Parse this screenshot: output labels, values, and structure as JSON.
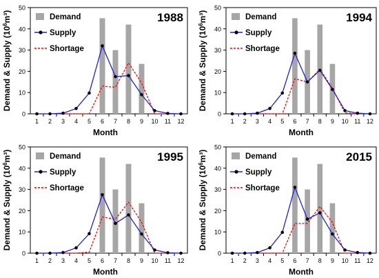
{
  "figure": {
    "ylabel_text": "Demand & Supply (10",
    "ylabel_exp": "6",
    "ylabel_unit": "m³)",
    "xlabel": "Month"
  },
  "colors": {
    "demand": "#a6a6a6",
    "supply": "#1f1fd6",
    "supply_marker": "#000000",
    "shortage": "#ff0000"
  },
  "chart_data": [
    {
      "type": "bar+line",
      "title": "1988",
      "xlabel": "Month",
      "ylabel": "Demand & Supply (10⁶m³)",
      "ylim": [
        0,
        50
      ],
      "yticks": [
        0,
        10,
        20,
        30,
        40,
        50
      ],
      "categories": [
        "1",
        "2",
        "3",
        "4",
        "5",
        "6",
        "7",
        "8",
        "9",
        "10",
        "11",
        "12"
      ],
      "series": [
        {
          "name": "Demand",
          "kind": "bar",
          "values": [
            0,
            0,
            0,
            0,
            0,
            45,
            30,
            42,
            23.5,
            0,
            0,
            0
          ]
        },
        {
          "name": "Supply",
          "kind": "line-marker",
          "values": [
            0,
            0,
            0.3,
            2.5,
            9.8,
            32,
            17.5,
            18,
            9,
            1.5,
            0.2,
            0
          ]
        },
        {
          "name": "Shortage",
          "kind": "dashed-line",
          "values": [
            0,
            0,
            0,
            0,
            0,
            13,
            12.5,
            24,
            14.5,
            0,
            0,
            0
          ]
        }
      ],
      "legend": "top-left",
      "grid": false
    },
    {
      "type": "bar+line",
      "title": "1994",
      "xlabel": "Month",
      "ylabel": "Demand & Supply (10⁶m³)",
      "ylim": [
        0,
        50
      ],
      "yticks": [
        0,
        10,
        20,
        30,
        40,
        50
      ],
      "categories": [
        "1",
        "2",
        "3",
        "4",
        "5",
        "6",
        "7",
        "8",
        "9",
        "10",
        "11",
        "12"
      ],
      "series": [
        {
          "name": "Demand",
          "kind": "bar",
          "values": [
            0,
            0,
            0,
            0,
            0,
            45,
            30,
            42,
            23.5,
            0,
            0,
            0
          ]
        },
        {
          "name": "Supply",
          "kind": "line-marker",
          "values": [
            0,
            0,
            0.3,
            2.5,
            9.8,
            28.5,
            15,
            20.5,
            11.5,
            1.5,
            0.3,
            0
          ]
        },
        {
          "name": "Shortage",
          "kind": "dashed-line",
          "values": [
            0,
            0,
            0,
            0,
            0,
            16.5,
            15,
            21,
            12,
            0.5,
            0,
            0
          ]
        }
      ],
      "legend": "top-left",
      "grid": false
    },
    {
      "type": "bar+line",
      "title": "1995",
      "xlabel": "Month",
      "ylabel": "Demand & Supply (10⁶m³)",
      "ylim": [
        0,
        50
      ],
      "yticks": [
        0,
        10,
        20,
        30,
        40,
        50
      ],
      "categories": [
        "1",
        "2",
        "3",
        "4",
        "5",
        "6",
        "7",
        "8",
        "9",
        "10",
        "11",
        "12"
      ],
      "series": [
        {
          "name": "Demand",
          "kind": "bar",
          "values": [
            0,
            0,
            0,
            0,
            0,
            45,
            30,
            42,
            23.5,
            0,
            0,
            0
          ]
        },
        {
          "name": "Supply",
          "kind": "line-marker",
          "values": [
            0,
            0,
            0.3,
            2.5,
            9.2,
            27.5,
            14,
            18,
            9,
            1.5,
            0.2,
            0
          ]
        },
        {
          "name": "Shortage",
          "kind": "dashed-line",
          "values": [
            0,
            0,
            0,
            0,
            0.5,
            17,
            16,
            24,
            14.5,
            0,
            0,
            0
          ]
        }
      ],
      "legend": "top-left",
      "grid": false
    },
    {
      "type": "bar+line",
      "title": "2015",
      "xlabel": "Month",
      "ylabel": "Demand & Supply (10⁶m³)",
      "ylim": [
        0,
        50
      ],
      "yticks": [
        0,
        10,
        20,
        30,
        40,
        50
      ],
      "categories": [
        "1",
        "2",
        "3",
        "4",
        "5",
        "6",
        "7",
        "8",
        "9",
        "10",
        "11",
        "12"
      ],
      "series": [
        {
          "name": "Demand",
          "kind": "bar",
          "values": [
            0,
            0,
            0,
            0,
            0,
            45,
            30,
            42,
            23.5,
            0,
            0,
            0
          ]
        },
        {
          "name": "Supply",
          "kind": "line-marker",
          "values": [
            0,
            0,
            0.3,
            2.5,
            9.8,
            31,
            16,
            19,
            9,
            1.5,
            0.3,
            0
          ]
        },
        {
          "name": "Shortage",
          "kind": "dashed-line",
          "values": [
            0,
            0,
            0,
            0,
            0,
            14,
            14,
            22,
            14.5,
            0,
            0,
            0
          ]
        }
      ],
      "legend": "top-left",
      "grid": false
    }
  ]
}
